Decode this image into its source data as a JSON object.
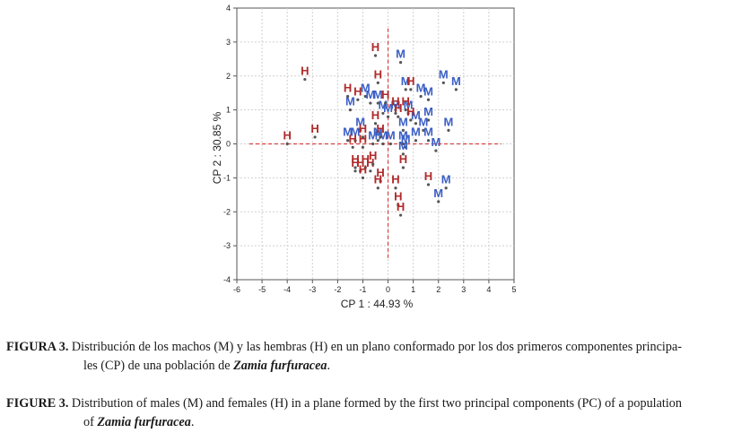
{
  "chart_data": {
    "type": "scatter",
    "title": "",
    "xlabel": "CP 1 : 44.93 %",
    "ylabel": "CP 2 : 30.85 %",
    "xlim": [
      -6,
      5
    ],
    "ylim": [
      -4,
      4
    ],
    "xticks": [
      -6,
      -5,
      -4,
      -3,
      -2,
      -1,
      0,
      1,
      2,
      3,
      4,
      5
    ],
    "yticks": [
      -4,
      -3,
      -2,
      -1,
      0,
      1,
      2,
      3,
      4
    ],
    "grid": true,
    "reference_lines": {
      "x": 0,
      "y": 0,
      "color": "#d94040",
      "style": "dashed"
    },
    "series": [
      {
        "name": "M",
        "color": "#3b5fc4",
        "points": [
          [
            0.5,
            2.4
          ],
          [
            2.2,
            1.8
          ],
          [
            2.7,
            1.6
          ],
          [
            0.7,
            1.6
          ],
          [
            1.3,
            1.4
          ],
          [
            1.6,
            1.3
          ],
          [
            -1.5,
            1.0
          ],
          [
            -0.9,
            1.4
          ],
          [
            -0.7,
            1.2
          ],
          [
            -0.4,
            1.2
          ],
          [
            -0.2,
            0.9
          ],
          [
            0.0,
            0.8
          ],
          [
            0.3,
            0.9
          ],
          [
            0.8,
            0.9
          ],
          [
            1.1,
            0.6
          ],
          [
            1.6,
            0.7
          ],
          [
            2.4,
            0.4
          ],
          [
            1.4,
            0.4
          ],
          [
            0.6,
            0.4
          ],
          [
            -1.1,
            0.4
          ],
          [
            -1.3,
            0.1
          ],
          [
            -1.6,
            0.1
          ],
          [
            -0.6,
            0.0
          ],
          [
            -0.2,
            0.0
          ],
          [
            -0.4,
            0.1
          ],
          [
            0.1,
            0.0
          ],
          [
            0.6,
            0.0
          ],
          [
            0.7,
            -0.1
          ],
          [
            1.1,
            0.1
          ],
          [
            1.6,
            0.1
          ],
          [
            1.9,
            -0.2
          ],
          [
            0.6,
            -0.3
          ],
          [
            2.3,
            -1.3
          ],
          [
            2.0,
            -1.7
          ]
        ]
      },
      {
        "name": "H",
        "color": "#b02a2a",
        "points": [
          [
            -0.5,
            2.6
          ],
          [
            -3.3,
            1.9
          ],
          [
            -0.4,
            1.8
          ],
          [
            -1.6,
            1.4
          ],
          [
            -1.2,
            1.3
          ],
          [
            -0.1,
            1.2
          ],
          [
            0.3,
            1.0
          ],
          [
            0.9,
            1.6
          ],
          [
            0.7,
            1.0
          ],
          [
            0.9,
            0.7
          ],
          [
            0.4,
            0.8
          ],
          [
            -0.5,
            0.6
          ],
          [
            -1.0,
            0.2
          ],
          [
            -2.9,
            0.2
          ],
          [
            -4.0,
            0.0
          ],
          [
            -1.0,
            -0.1
          ],
          [
            -0.9,
            -0.7
          ],
          [
            -1.3,
            -0.7
          ],
          [
            -1.3,
            -0.8
          ],
          [
            -1.1,
            -0.8
          ],
          [
            -0.7,
            -0.8
          ],
          [
            -1.0,
            -1.0
          ],
          [
            -0.6,
            -0.6
          ],
          [
            -0.3,
            -1.1
          ],
          [
            -0.4,
            -1.3
          ],
          [
            0.3,
            -1.3
          ],
          [
            0.4,
            -1.8
          ],
          [
            0.5,
            -2.1
          ],
          [
            1.6,
            -1.2
          ],
          [
            -1.4,
            -0.1
          ],
          [
            0.6,
            -0.7
          ],
          [
            -0.3,
            0.2
          ]
        ]
      }
    ]
  },
  "captions": {
    "es": {
      "head": "FIGURA 3.",
      "text1": " Distribución de los machos (M) y las hembras (H) en un plano conformado por los dos primeros componentes principa-",
      "text2": "les (CP) de una población de ",
      "species": "Zamia furfuracea",
      "end": "."
    },
    "en": {
      "head": "FIGURE 3.",
      "text1": " Distribution of males (M) and females (H) in a plane formed by the first two principal components (PC) of a population",
      "text2": "of ",
      "species": "Zamia furfuracea",
      "end": "."
    }
  }
}
